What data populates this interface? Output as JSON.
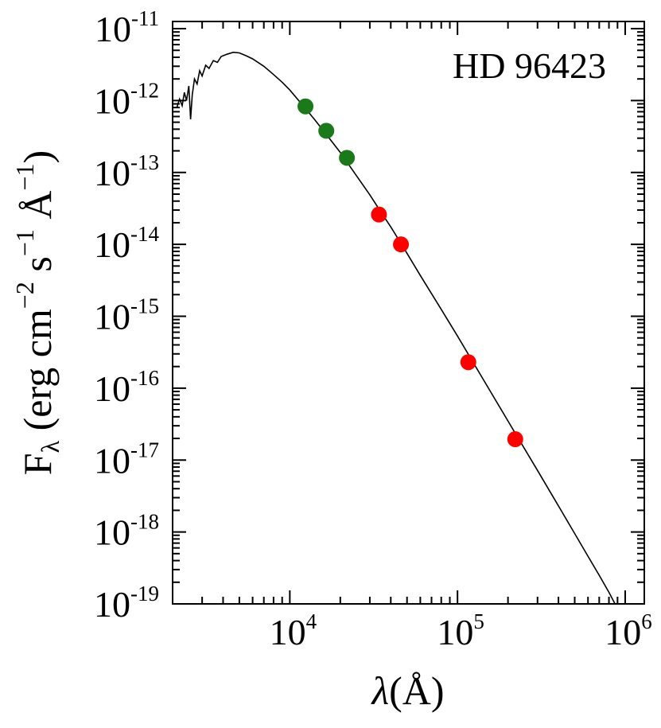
{
  "chart_data": {
    "type": "scatter",
    "title": "",
    "annotation": "HD 96423",
    "xlabel": {
      "symbol": "λ",
      "unit": "(Å)"
    },
    "ylabel": {
      "main": "F",
      "sub": "λ",
      "unit_open": " (erg cm",
      "sup1": "−2",
      "mid": " s",
      "sup2": "−1",
      "mid2": " Å",
      "sup3": "−1",
      "unit_close": ")"
    },
    "xscale": "log",
    "yscale": "log",
    "xlim": [
      2000,
      1300000
    ],
    "ylim": [
      1e-19,
      1.259e-11
    ],
    "grid": false,
    "x_ticks": [
      {
        "value": 10000,
        "base": "10",
        "exp": "4"
      },
      {
        "value": 100000,
        "base": "10",
        "exp": "5"
      },
      {
        "value": 1000000,
        "base": "10",
        "exp": "6"
      }
    ],
    "y_ticks": [
      {
        "value": 1e-11,
        "base": "10",
        "exp": "-11"
      },
      {
        "value": 1e-12,
        "base": "10",
        "exp": "-12"
      },
      {
        "value": 1e-13,
        "base": "10",
        "exp": "-13"
      },
      {
        "value": 1e-14,
        "base": "10",
        "exp": "-14"
      },
      {
        "value": 1e-15,
        "base": "10",
        "exp": "-15"
      },
      {
        "value": 1e-16,
        "base": "10",
        "exp": "-16"
      },
      {
        "value": 1e-17,
        "base": "10",
        "exp": "-17"
      },
      {
        "value": 1e-18,
        "base": "10",
        "exp": "-18"
      },
      {
        "value": 1e-19,
        "base": "10",
        "exp": "-19"
      }
    ],
    "series": [
      {
        "kind": "model-spectrum",
        "color": "#000000",
        "points": [
          [
            2120,
            8e-13
          ],
          [
            2200,
            1.05e-12
          ],
          [
            2280,
            8.5e-13
          ],
          [
            2350,
            1.3e-12
          ],
          [
            2420,
            1e-12
          ],
          [
            2500,
            1.6e-12
          ],
          [
            2560,
            5.5e-13
          ],
          [
            2620,
            1.2e-12
          ],
          [
            2700,
            2e-12
          ],
          [
            2800,
            1.7e-12
          ],
          [
            2900,
            2.6e-12
          ],
          [
            3000,
            2.2e-12
          ],
          [
            3150,
            3.1e-12
          ],
          [
            3300,
            2.8e-12
          ],
          [
            3500,
            3.6e-12
          ],
          [
            3700,
            3.4e-12
          ],
          [
            3900,
            4.1e-12
          ],
          [
            4200,
            4.4e-12
          ],
          [
            4600,
            4.7e-12
          ],
          [
            5000,
            4.6e-12
          ],
          [
            5500,
            4.2e-12
          ],
          [
            6000,
            3.8e-12
          ],
          [
            7000,
            3e-12
          ],
          [
            8000,
            2.3e-12
          ],
          [
            9000,
            1.8e-12
          ],
          [
            10000,
            1.4e-12
          ],
          [
            12000,
            8.5e-13
          ],
          [
            14000,
            5.5e-13
          ],
          [
            17000,
            3.1e-13
          ],
          [
            20000,
            1.9e-13
          ],
          [
            25000,
            9e-14
          ],
          [
            30000,
            4.9e-14
          ],
          [
            35000,
            2.8e-14
          ],
          [
            40000,
            1.75e-14
          ],
          [
            50000,
            7.5e-15
          ],
          [
            60000,
            3.7e-15
          ],
          [
            80000,
            1.25e-15
          ],
          [
            100000,
            5.3e-16
          ],
          [
            150000,
            1.08e-16
          ],
          [
            200000,
            3.5e-17
          ],
          [
            300000,
            7.2e-18
          ],
          [
            400000,
            2.3e-18
          ],
          [
            500000,
            9.5e-19
          ],
          [
            600000,
            4.6e-19
          ],
          [
            700000,
            2.5e-19
          ],
          [
            800000,
            1.45e-19
          ],
          [
            870000,
            1e-19
          ]
        ]
      },
      {
        "kind": "photometry",
        "color": "#1a7a1a",
        "points": [
          [
            12400,
            8.3e-13
          ],
          [
            16500,
            3.8e-13
          ],
          [
            21900,
            1.6e-13
          ]
        ]
      },
      {
        "kind": "photometry",
        "color": "#ff0000",
        "points": [
          [
            34000,
            2.6e-14
          ],
          [
            46000,
            1e-14
          ],
          [
            116000,
            2.3e-16
          ],
          [
            221000,
            1.95e-17
          ]
        ]
      }
    ]
  }
}
